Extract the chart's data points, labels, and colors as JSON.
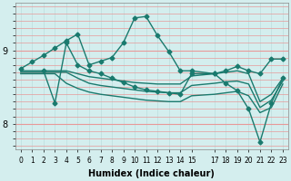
{
  "xlabel": "Humidex (Indice chaleur)",
  "xlim": [
    -0.5,
    23.5
  ],
  "ylim": [
    7.65,
    9.65
  ],
  "yticks": [
    8,
    9
  ],
  "xticks": [
    0,
    1,
    2,
    3,
    4,
    5,
    6,
    7,
    8,
    9,
    10,
    11,
    12,
    13,
    14,
    15,
    17,
    18,
    19,
    20,
    21,
    22,
    23
  ],
  "bg_color": "#d4eeee",
  "grid_color_h": "#e89898",
  "grid_color_v": "#bcdede",
  "line_color": "#1a7a6e",
  "line_width": 1.0,
  "marker": "D",
  "marker_size": 2.5,
  "series": [
    {
      "x": [
        0,
        1,
        2,
        3,
        4,
        5,
        6,
        7,
        8,
        9,
        10,
        11,
        12,
        13,
        14,
        15,
        17,
        18,
        19,
        20,
        21,
        22,
        23
      ],
      "y": [
        8.75,
        8.84,
        8.93,
        9.03,
        9.13,
        9.22,
        8.8,
        8.85,
        8.9,
        9.1,
        9.44,
        9.46,
        9.2,
        8.98,
        8.72,
        8.72,
        8.68,
        8.72,
        8.78,
        8.72,
        8.68,
        8.88,
        8.88
      ],
      "has_markers": true
    },
    {
      "x": [
        2,
        3,
        4,
        5,
        6,
        7,
        8,
        9,
        10,
        11,
        12,
        13,
        14,
        15,
        17,
        18,
        19,
        20,
        21,
        22,
        23
      ],
      "y": [
        8.72,
        8.28,
        9.1,
        8.8,
        8.72,
        8.68,
        8.62,
        8.56,
        8.5,
        8.46,
        8.44,
        8.42,
        8.4,
        8.68,
        8.68,
        8.55,
        8.45,
        8.2,
        7.75,
        8.28,
        8.62
      ],
      "has_markers": true
    },
    {
      "x": [
        0,
        1,
        2,
        3,
        4,
        5,
        6,
        7,
        8,
        9,
        10,
        11,
        12,
        13,
        14,
        15,
        17,
        18,
        19,
        20,
        21,
        22,
        23
      ],
      "y": [
        8.72,
        8.72,
        8.72,
        8.72,
        8.72,
        8.68,
        8.64,
        8.62,
        8.6,
        8.58,
        8.56,
        8.55,
        8.54,
        8.54,
        8.54,
        8.65,
        8.68,
        8.7,
        8.72,
        8.68,
        8.3,
        8.4,
        8.62
      ],
      "has_markers": false
    },
    {
      "x": [
        0,
        1,
        2,
        3,
        4,
        5,
        6,
        7,
        8,
        9,
        10,
        11,
        12,
        13,
        14,
        15,
        17,
        18,
        19,
        20,
        21,
        22,
        23
      ],
      "y": [
        8.7,
        8.7,
        8.7,
        8.7,
        8.7,
        8.62,
        8.55,
        8.52,
        8.5,
        8.48,
        8.46,
        8.44,
        8.43,
        8.42,
        8.42,
        8.52,
        8.55,
        8.57,
        8.58,
        8.54,
        8.22,
        8.32,
        8.58
      ],
      "has_markers": false
    },
    {
      "x": [
        0,
        1,
        2,
        3,
        4,
        5,
        6,
        7,
        8,
        9,
        10,
        11,
        12,
        13,
        14,
        15,
        17,
        18,
        19,
        20,
        21,
        22,
        23
      ],
      "y": [
        8.68,
        8.68,
        8.68,
        8.68,
        8.55,
        8.48,
        8.43,
        8.4,
        8.38,
        8.36,
        8.34,
        8.32,
        8.31,
        8.3,
        8.3,
        8.38,
        8.4,
        8.42,
        8.44,
        8.38,
        8.15,
        8.22,
        8.54
      ],
      "has_markers": false
    }
  ]
}
